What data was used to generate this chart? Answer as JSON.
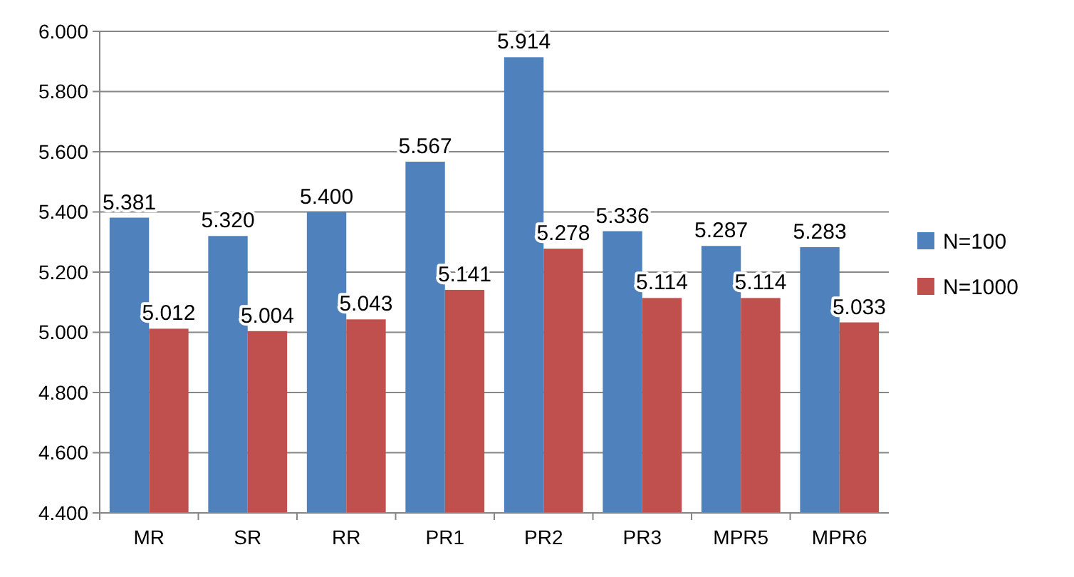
{
  "chart_data": {
    "type": "bar",
    "categories": [
      "MR",
      "SR",
      "RR",
      "PR1",
      "PR2",
      "PR3",
      "MPR5",
      "MPR6"
    ],
    "series": [
      {
        "name": "N=100",
        "color": "#4f81bd",
        "values": [
          5381,
          5320,
          5400,
          5567,
          5914,
          5336,
          5287,
          5283
        ],
        "value_labels": [
          "5.381",
          "5.320",
          "5.400",
          "5.567",
          "5.914",
          "5.336",
          "5.287",
          "5.283"
        ]
      },
      {
        "name": "N=1000",
        "color": "#c0504d",
        "values": [
          5012,
          5004,
          5043,
          5141,
          5278,
          5114,
          5114,
          5033
        ],
        "value_labels": [
          "5.012",
          "5.004",
          "5.043",
          "5.141",
          "5.278",
          "5.114",
          "5.114",
          "5.033"
        ]
      }
    ],
    "ylim": [
      4400,
      6000
    ],
    "yticks": [
      {
        "value": 4400,
        "label": "4.400"
      },
      {
        "value": 4600,
        "label": "4.600"
      },
      {
        "value": 4800,
        "label": "4.800"
      },
      {
        "value": 5000,
        "label": "5.000"
      },
      {
        "value": 5200,
        "label": "5.200"
      },
      {
        "value": 5400,
        "label": "5.400"
      },
      {
        "value": 5600,
        "label": "5.600"
      },
      {
        "value": 5800,
        "label": "5.800"
      },
      {
        "value": 6000,
        "label": "6.000"
      }
    ],
    "grid": "y",
    "legend": "right"
  }
}
